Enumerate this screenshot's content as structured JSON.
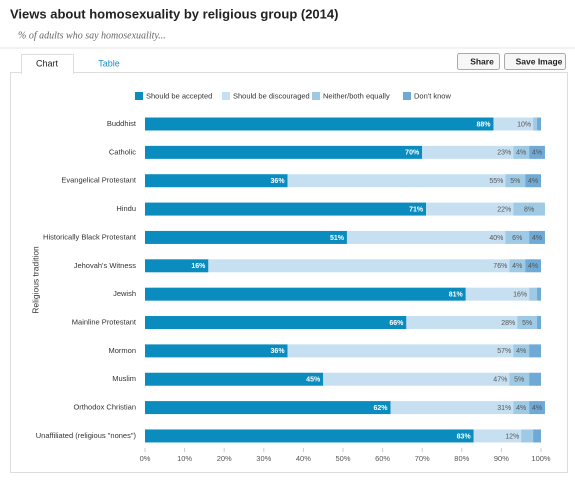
{
  "ui": {
    "tabs": [
      "Chart",
      "Table"
    ],
    "buttons": [
      "Share",
      "Save Image"
    ]
  },
  "chart_data": {
    "type": "stacked-bar-horizontal",
    "title": "Views about homosexuality by religious group (2014)",
    "subtitle": "% of adults who say homosexuality...",
    "y_label": "Religious tradition",
    "categories": [
      "Buddhist",
      "Catholic",
      "Evangelical Protestant",
      "Hindu",
      "Historically Black Protestant",
      "Jehovah's Witness",
      "Jewish",
      "Mainline Protestant",
      "Mormon",
      "Muslim",
      "Orthodox Christian",
      "Unaffiliated (religious \"nones\")"
    ],
    "series": [
      {
        "name": "Should be accepted",
        "color": "#0b8cbf",
        "values": [
          88,
          70,
          36,
          71,
          51,
          16,
          81,
          66,
          36,
          45,
          62,
          83
        ],
        "value_labels": [
          "88%",
          "70%",
          "36%",
          "71%",
          "51%",
          "16%",
          "81%",
          "66%",
          "36%",
          "45%",
          "62%",
          "83%"
        ]
      },
      {
        "name": "Should be discouraged",
        "color": "#c7e0f1",
        "values": [
          10,
          23,
          55,
          22,
          40,
          76,
          16,
          28,
          57,
          47,
          31,
          12
        ],
        "value_labels": [
          "10%",
          "23%",
          "55%",
          "22%",
          "40%",
          "76%",
          "16%",
          "28%",
          "57%",
          "47%",
          "31%",
          "12%"
        ]
      },
      {
        "name": "Neither/both equally",
        "color": "#9ecae6",
        "values": [
          1,
          4,
          5,
          8,
          6,
          4,
          2,
          5,
          4,
          5,
          4,
          3
        ],
        "value_labels": [
          null,
          "4%",
          "5%",
          "8%",
          "6%",
          "4%",
          null,
          "5%",
          "4%",
          "5%",
          "4%",
          null
        ]
      },
      {
        "name": "Don't know",
        "color": "#6faad6",
        "values": [
          1,
          4,
          4,
          0,
          4,
          4,
          1,
          1,
          3,
          3,
          4,
          2
        ],
        "value_labels": [
          null,
          "4%",
          "4%",
          null,
          "4%",
          "4%",
          null,
          null,
          null,
          null,
          "4%",
          null
        ]
      }
    ],
    "xlim": [
      0,
      100
    ],
    "xticks": [
      {
        "value": 0,
        "label": "0%"
      },
      {
        "value": 10,
        "label": "10%"
      },
      {
        "value": 20,
        "label": "20%"
      },
      {
        "value": 30,
        "label": "30%"
      },
      {
        "value": 40,
        "label": "40%"
      },
      {
        "value": 50,
        "label": "50%"
      },
      {
        "value": 60,
        "label": "60%"
      },
      {
        "value": 70,
        "label": "70%"
      },
      {
        "value": 80,
        "label": "80%"
      },
      {
        "value": 90,
        "label": "90%"
      },
      {
        "value": 100,
        "label": "100%"
      }
    ],
    "legend": "top"
  }
}
